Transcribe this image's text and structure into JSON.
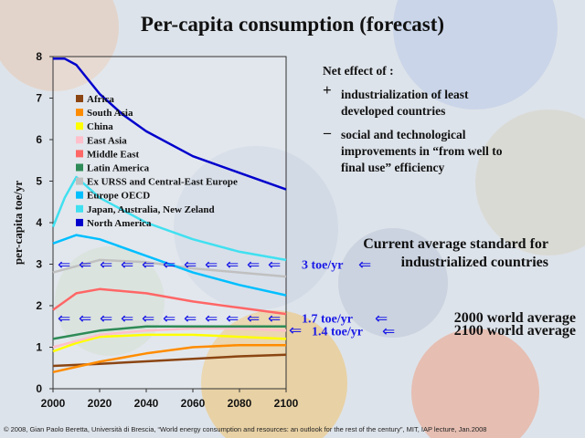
{
  "title": "Per-capita consumption (forecast)",
  "notes": {
    "heading": "Net effect of :",
    "plus_symbol": "+",
    "plus_text": "industrialization of least developed countries",
    "minus_symbol": "–",
    "minus_text": "social and technological improvements in “from well to final use” efficiency"
  },
  "annotations": {
    "industrialized": "Current average standard for industrialized countries",
    "avg_2000": "2000 world average",
    "avg_2100": "2100 world average",
    "arrow_glyph": "⇐"
  },
  "footer": "© 2008, Gian Paolo Beretta, Università di Brescia, “World energy consumption and resources: an outlook for the rest of the century”, MIT, IAP lecture, Jan.2008",
  "chart_data": {
    "type": "line",
    "title": "Per-capita consumption (forecast)",
    "xlabel": "",
    "ylabel": "per-capita toe/yr",
    "xlim": [
      2000,
      2100
    ],
    "ylim": [
      0,
      8
    ],
    "x_ticks": [
      "2000",
      "2020",
      "2040",
      "2060",
      "2080",
      "2100"
    ],
    "y_ticks": [
      "0",
      "1",
      "2",
      "3",
      "4",
      "5",
      "6",
      "7",
      "8"
    ],
    "legend_position": "top-left",
    "series": [
      {
        "name": "Africa",
        "color": "#8b4513",
        "x": [
          2000,
          2020,
          2040,
          2060,
          2080,
          2100
        ],
        "y": [
          0.55,
          0.6,
          0.66,
          0.72,
          0.78,
          0.82
        ]
      },
      {
        "name": "South Asia",
        "color": "#ff8c00",
        "x": [
          2000,
          2020,
          2040,
          2060,
          2080,
          2100
        ],
        "y": [
          0.4,
          0.65,
          0.85,
          1.0,
          1.05,
          1.05
        ]
      },
      {
        "name": "China",
        "color": "#ffff00",
        "x": [
          2000,
          2010,
          2020,
          2040,
          2060,
          2080,
          2100
        ],
        "y": [
          0.9,
          1.1,
          1.25,
          1.3,
          1.3,
          1.25,
          1.2
        ]
      },
      {
        "name": "East Asia",
        "color": "#ffc0cb",
        "x": [
          2000,
          2020,
          2040,
          2060,
          2080,
          2100
        ],
        "y": [
          1.0,
          1.3,
          1.4,
          1.45,
          1.45,
          1.4
        ]
      },
      {
        "name": "Middle East",
        "color": "#ff6666",
        "x": [
          2000,
          2010,
          2020,
          2040,
          2060,
          2080,
          2100
        ],
        "y": [
          1.9,
          2.3,
          2.4,
          2.3,
          2.1,
          1.95,
          1.8
        ]
      },
      {
        "name": "Latin America",
        "color": "#2e8b57",
        "x": [
          2000,
          2020,
          2040,
          2060,
          2080,
          2100
        ],
        "y": [
          1.2,
          1.4,
          1.5,
          1.5,
          1.5,
          1.5
        ]
      },
      {
        "name": "Ex URSS and Central-East Europe",
        "color": "#c0c0c0",
        "x": [
          2000,
          2020,
          2040,
          2060,
          2080,
          2100
        ],
        "y": [
          2.8,
          3.1,
          3.05,
          2.9,
          2.8,
          2.7
        ]
      },
      {
        "name": "Europe OECD",
        "color": "#00bfff",
        "x": [
          2000,
          2010,
          2020,
          2040,
          2060,
          2080,
          2100
        ],
        "y": [
          3.5,
          3.7,
          3.6,
          3.2,
          2.8,
          2.5,
          2.25
        ]
      },
      {
        "name": "Japan, Australia, New Zeland",
        "color": "#40e0f0",
        "x": [
          2000,
          2005,
          2010,
          2020,
          2040,
          2060,
          2080,
          2100
        ],
        "y": [
          3.9,
          4.6,
          5.1,
          4.6,
          4.0,
          3.6,
          3.3,
          3.1
        ]
      },
      {
        "name": "North America",
        "color": "#0000cc",
        "x": [
          2000,
          2005,
          2010,
          2020,
          2030,
          2040,
          2060,
          2080,
          2100
        ],
        "y": [
          7.95,
          7.95,
          7.8,
          7.1,
          6.6,
          6.2,
          5.6,
          5.2,
          4.8
        ]
      }
    ],
    "reference_levels": [
      {
        "label": "3 toe/yr",
        "y": 3.0
      },
      {
        "label": "1.7 toe/yr",
        "y": 1.7
      },
      {
        "label": "1.4 toe/yr",
        "y": 1.4
      }
    ]
  }
}
